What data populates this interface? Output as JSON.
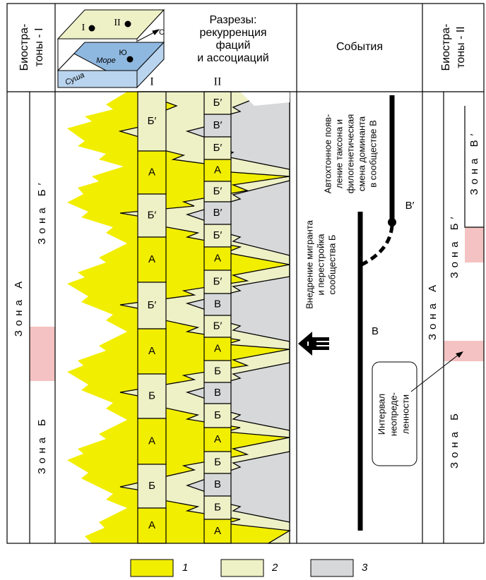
{
  "header": {
    "biostratons_1": [
      "Биостра-",
      "тоны - I"
    ],
    "sections_title": [
      "Разрезы:",
      "рекурренция",
      "фаций",
      "и ассоциаций"
    ],
    "events_title": "События",
    "biostratons_2": [
      "Биостра-",
      "тоны - II"
    ]
  },
  "block_diagram": {
    "section_1": "I",
    "section_2": "II",
    "north": "С",
    "south": "Ю",
    "sea": "Море",
    "land": "Суша"
  },
  "sections": [
    {
      "label": "I",
      "cells": [
        "Б′",
        "А",
        "Б′",
        "А",
        "Б′",
        "А",
        "Б",
        "А",
        "Б",
        "А"
      ]
    },
    {
      "label": "II",
      "cells": [
        "Б′",
        "В′",
        "Б′",
        "А",
        "Б′",
        "В′",
        "Б′",
        "А",
        "Б′",
        "В",
        "Б′",
        "А",
        "Б",
        "В",
        "Б",
        "А",
        "Б",
        "В",
        "Б",
        "А"
      ]
    }
  ],
  "biostratons_1": {
    "zones": [
      "Зона А",
      "Зона Б′",
      "Зона Б"
    ]
  },
  "events": {
    "autochthonous": [
      "Автохтонное появ-",
      "ление таксона и",
      "филогенетическая",
      "смена доминанта",
      "в сообществе В"
    ],
    "migrant": [
      "Внедрение мигранта",
      "и перестройка",
      "сообщества Б"
    ],
    "lineages": [
      "В′",
      "В"
    ]
  },
  "biostratons_2": {
    "zones": [
      "Зона В′",
      "Зона Б′",
      "Зона А",
      "Зона Б"
    ],
    "uncertainty": [
      "Интервал",
      "неопреде-",
      "ленности"
    ]
  },
  "legend": [
    "1",
    "2",
    "3"
  ]
}
